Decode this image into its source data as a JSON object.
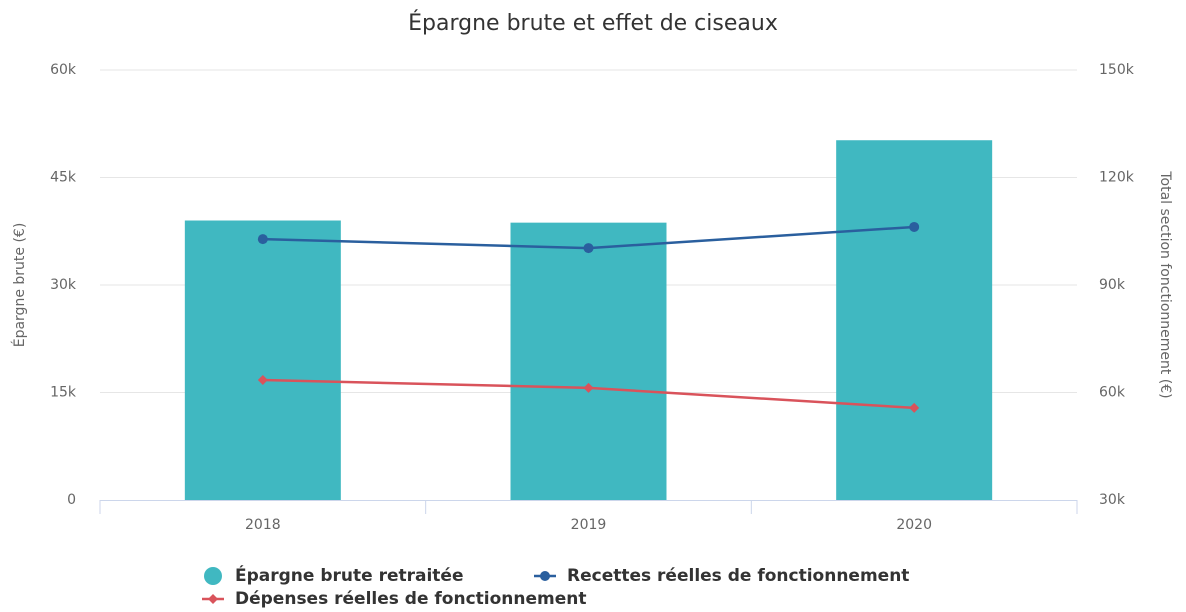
{
  "chart_data": {
    "type": "bar_line",
    "title": "Épargne brute et effet de ciseaux",
    "y_label": "Épargne brute (€)",
    "y2_label": "Total section fonctionnement (€)",
    "categories": [
      "2018",
      "2019",
      "2020"
    ],
    "ylim": [
      0,
      60000
    ],
    "yticks": [
      0,
      {
        "value": 15000,
        "label": "15k"
      },
      {
        "value": 30000,
        "label": "30k"
      },
      {
        "value": 45000,
        "label": "45k"
      },
      {
        "value": 60000,
        "label": "60k"
      }
    ],
    "y2lim": [
      30000,
      150000
    ],
    "y2ticks": [
      {
        "value": 30000,
        "label": "30k"
      },
      {
        "value": 60000,
        "label": "60k"
      },
      {
        "value": 90000,
        "label": "90k"
      },
      {
        "value": 120000,
        "label": "120k"
      },
      {
        "value": 150000,
        "label": "150k"
      }
    ],
    "grid": true,
    "series": [
      {
        "name": "Épargne brute retraitée",
        "type": "bar",
        "color": "#40b8c1",
        "values": [
          39000,
          38700,
          50200
        ]
      },
      {
        "name": "Recettes réelles de fonctionnement",
        "type": "line",
        "marker": "circle",
        "axis": "y2",
        "color": "#2a5f9e",
        "values": [
          102800,
          100300,
          106200
        ]
      },
      {
        "name": "Dépenses réelles de fonctionnement",
        "type": "line",
        "marker": "diamond",
        "axis": "y2",
        "color": "#d9535b",
        "values": [
          63500,
          61300,
          55700
        ]
      }
    ]
  }
}
